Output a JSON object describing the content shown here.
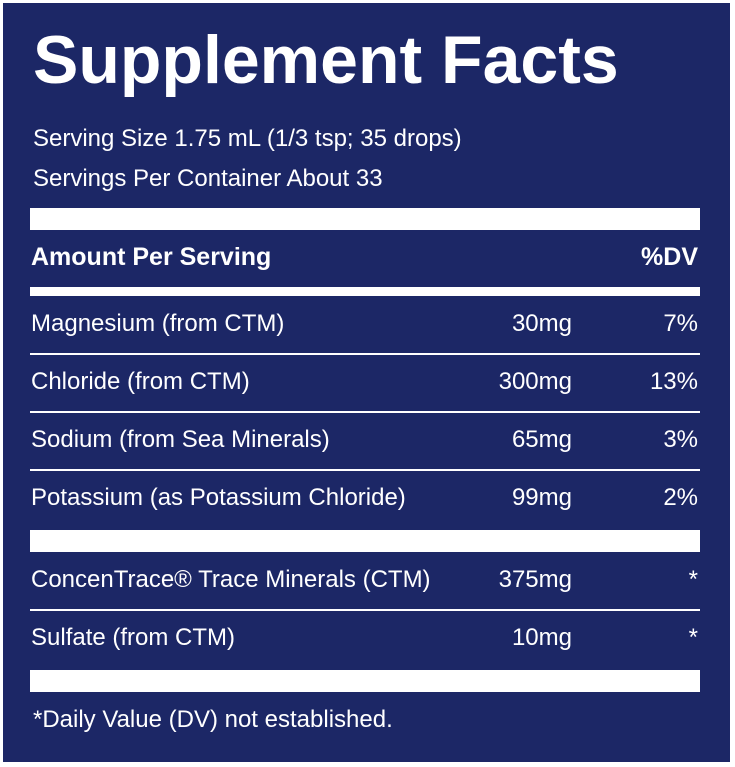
{
  "title": "Supplement Facts",
  "serving_size": "Serving Size 1.75 mL (1/3 tsp; 35 drops)",
  "servings_per_container": "Servings Per Container About 33",
  "header": {
    "amount": "Amount Per Serving",
    "dv": "%DV"
  },
  "groups": [
    {
      "rows": [
        [
          "Magnesium (from CTM)",
          "30mg",
          "7%"
        ],
        [
          "Chloride (from CTM)",
          "300mg",
          "13%"
        ],
        [
          "Sodium (from Sea Minerals)",
          "65mg",
          "3%"
        ],
        [
          "Potassium (as Potassium Chloride)",
          "99mg",
          "2%"
        ]
      ]
    },
    {
      "rows": [
        [
          "ConcenTrace® Trace Minerals (CTM)",
          "375mg",
          "*"
        ],
        [
          "Sulfate (from CTM)",
          "10mg",
          "*"
        ]
      ]
    }
  ],
  "footnote": "*Daily Value (DV) not established."
}
